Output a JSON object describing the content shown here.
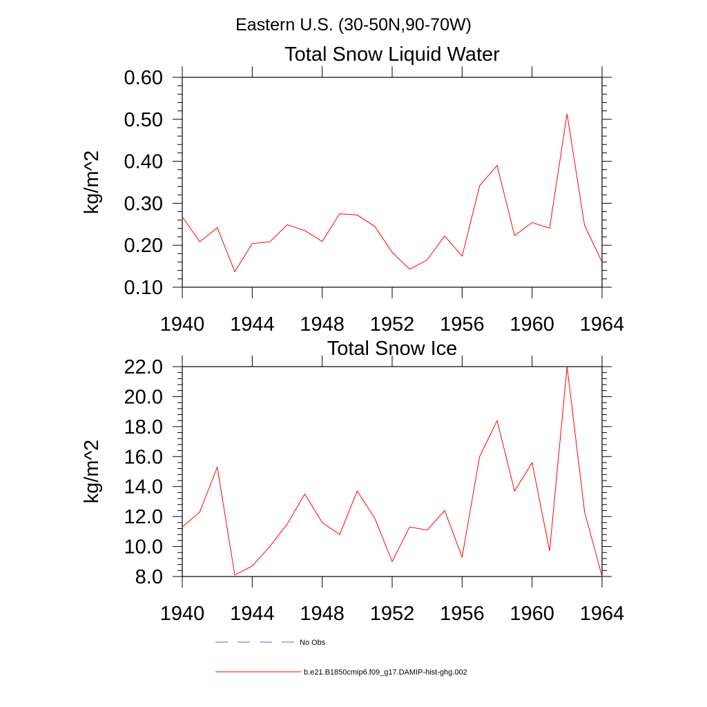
{
  "figure": {
    "suptitle": "Eastern U.S. (30-50N,90-70W)"
  },
  "chart_data": [
    {
      "type": "line",
      "title": "Total Snow Liquid Water",
      "ylabel": "kg/m^2",
      "xlabel": "",
      "xlim": [
        1940,
        1964
      ],
      "ylim": [
        0.1,
        0.6
      ],
      "x_ticks": [
        1940,
        1944,
        1948,
        1952,
        1956,
        1960,
        1964
      ],
      "x_tick_labels": [
        "1940",
        "1944",
        "1948",
        "1952",
        "1956",
        "1960",
        "1964"
      ],
      "y_ticks": [
        0.1,
        0.2,
        0.3,
        0.4,
        0.5,
        0.6
      ],
      "y_tick_labels": [
        "0.10",
        "0.20",
        "0.30",
        "0.40",
        "0.50",
        "0.60"
      ],
      "grid": false,
      "series": [
        {
          "name": "b.e21.B1850cmip6.f09_g17.DAMIP-hist-ghg.002",
          "color": "#ff0000",
          "x": [
            1940,
            1941,
            1942,
            1943,
            1944,
            1945,
            1946,
            1947,
            1948,
            1949,
            1950,
            1951,
            1952,
            1953,
            1954,
            1955,
            1956,
            1957,
            1958,
            1959,
            1960,
            1961,
            1962,
            1963,
            1964
          ],
          "y": [
            0.268,
            0.208,
            0.242,
            0.137,
            0.204,
            0.208,
            0.249,
            0.235,
            0.209,
            0.275,
            0.272,
            0.245,
            0.183,
            0.143,
            0.165,
            0.222,
            0.174,
            0.342,
            0.39,
            0.223,
            0.254,
            0.241,
            0.513,
            0.247,
            0.16
          ]
        }
      ]
    },
    {
      "type": "line",
      "title": "Total Snow Ice",
      "ylabel": "kg/m^2",
      "xlabel": "",
      "xlim": [
        1940,
        1964
      ],
      "ylim": [
        8.0,
        22.0
      ],
      "x_ticks": [
        1940,
        1944,
        1948,
        1952,
        1956,
        1960,
        1964
      ],
      "x_tick_labels": [
        "1940",
        "1944",
        "1948",
        "1952",
        "1956",
        "1960",
        "1964"
      ],
      "y_ticks": [
        8.0,
        10.0,
        12.0,
        14.0,
        16.0,
        18.0,
        20.0,
        22.0
      ],
      "y_tick_labels": [
        "8.0",
        "10.0",
        "12.0",
        "14.0",
        "16.0",
        "18.0",
        "20.0",
        "22.0"
      ],
      "grid": false,
      "series": [
        {
          "name": "b.e21.B1850cmip6.f09_g17.DAMIP-hist-ghg.002",
          "color": "#ff0000",
          "x": [
            1940,
            1941,
            1942,
            1943,
            1944,
            1945,
            1946,
            1947,
            1948,
            1949,
            1950,
            1951,
            1952,
            1953,
            1954,
            1955,
            1956,
            1957,
            1958,
            1959,
            1960,
            1961,
            1962,
            1963,
            1964
          ],
          "y": [
            11.3,
            12.3,
            15.3,
            8.1,
            8.7,
            10.0,
            11.5,
            13.5,
            11.6,
            10.8,
            13.7,
            11.9,
            9.0,
            11.3,
            11.1,
            12.4,
            9.3,
            16.0,
            18.4,
            13.7,
            15.6,
            9.7,
            22.0,
            12.3,
            8.0
          ]
        }
      ]
    }
  ],
  "legend": {
    "placement": "bottom",
    "entries": [
      {
        "label": "No Obs",
        "color": "#6a6a9a",
        "style": "dashed"
      },
      {
        "label": "b.e21.B1850cmip6.f09_g17.DAMIP-hist-ghg.002",
        "color": "#ff0000",
        "style": "solid"
      }
    ]
  }
}
